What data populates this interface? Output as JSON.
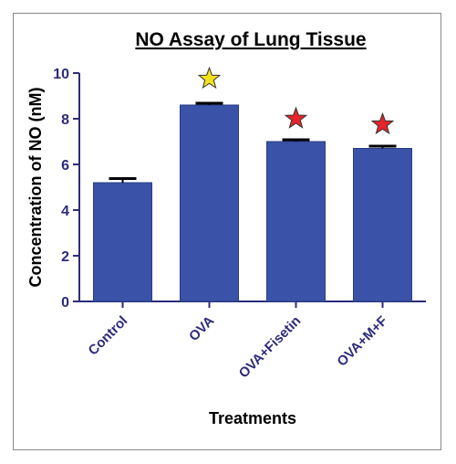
{
  "chart_data": {
    "type": "bar",
    "title": "NO Assay of Lung Tissue",
    "xlabel": "Treatments",
    "ylabel": "Concentration of NO (nM)",
    "categories": [
      "Control",
      "OVA",
      "OVA+Fisetin",
      "OVA+M+F"
    ],
    "values": [
      5.2,
      8.6,
      7.0,
      6.7
    ],
    "errors": [
      0.18,
      0.08,
      0.08,
      0.1
    ],
    "ylim": [
      0,
      10
    ],
    "yticks": [
      0,
      2,
      4,
      6,
      8,
      10
    ],
    "markers": [
      {
        "category": "OVA",
        "symbol": "star",
        "color": "#f2e21a",
        "value": 9.75
      },
      {
        "category": "OVA+Fisetin",
        "symbol": "star",
        "color": "#e5232b",
        "value": 8.0
      },
      {
        "category": "OVA+M+F",
        "symbol": "star",
        "color": "#e5232b",
        "value": 7.75
      }
    ],
    "bar_color": "#3a52a8",
    "axis_color": "#2c2c7a",
    "grid": false
  }
}
